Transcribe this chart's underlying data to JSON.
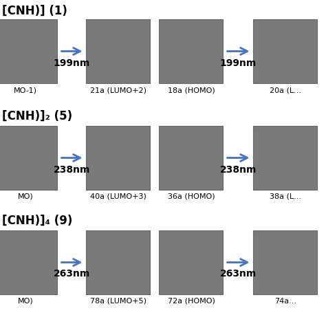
{
  "background_color": "#ffffff",
  "section_titles": [
    "[CNH)] (1)",
    "[CNH)]₂ (5)",
    "[CNH)]₄ (9)"
  ],
  "rows": [
    {
      "wavelength1": "199nm",
      "wavelength2": "199nm",
      "labels": [
        "MO-1)",
        "21a (LUMO+2)",
        "18a (HOMO)",
        "20a (L..."
      ]
    },
    {
      "wavelength1": "238nm",
      "wavelength2": "238nm",
      "labels": [
        "MO)",
        "40a (LUMO+3)",
        "36a (HOMO)",
        "38a (L..."
      ]
    },
    {
      "wavelength1": "263nm",
      "wavelength2": "263nm",
      "labels": [
        "MO)",
        "78a (LUMO+5)",
        "72a (HOMO)",
        "74a..."
      ]
    }
  ],
  "arrow_color": "#4472c4",
  "box_color": "#7a7a7a",
  "box_edge_color": "#666666",
  "title_fontsize": 12,
  "label_fontsize": 8,
  "wavelength_fontsize": 10
}
